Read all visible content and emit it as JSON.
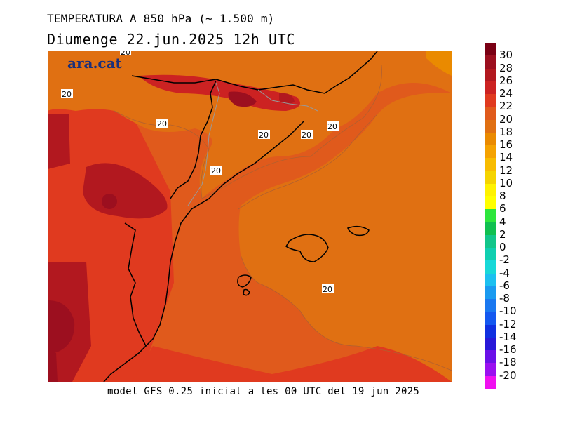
{
  "title": "TEMPERATURA A 850 hPa (~ 1.500 m)",
  "subtitle": "Diumenge  22.jun.2025 12h UTC",
  "footer": "model GFS 0.25 iniciat a les 00 UTC del 19 jun 2025",
  "logo": "ara.cat",
  "contour_labels": [
    "20",
    "20",
    "20",
    "20",
    "20",
    "20",
    "20",
    "20"
  ],
  "legend": {
    "levels": [
      "30",
      "28",
      "26",
      "24",
      "22",
      "20",
      "18",
      "16",
      "14",
      "12",
      "10",
      "8",
      "6",
      "4",
      "2",
      "0",
      "-2",
      "-4",
      "-6",
      "-8",
      "-10",
      "-12",
      "-14",
      "-16",
      "-18",
      "-20"
    ],
    "colors": [
      "#7a0014",
      "#9c0f1f",
      "#b2181f",
      "#cc2222",
      "#e03a1f",
      "#e05a1c",
      "#e07012",
      "#ea8a00",
      "#f5a200",
      "#f8bc00",
      "#f5d400",
      "#fff200",
      "#ffff00",
      "#2ee63c",
      "#10c050",
      "#12c68a",
      "#10cfb0",
      "#18d8d8",
      "#1cc0f0",
      "#1a9af0",
      "#1a78f0",
      "#1458f0",
      "#1030e0",
      "#2818d8",
      "#6a10e8",
      "#9a10f0",
      "#f010f0"
    ]
  }
}
